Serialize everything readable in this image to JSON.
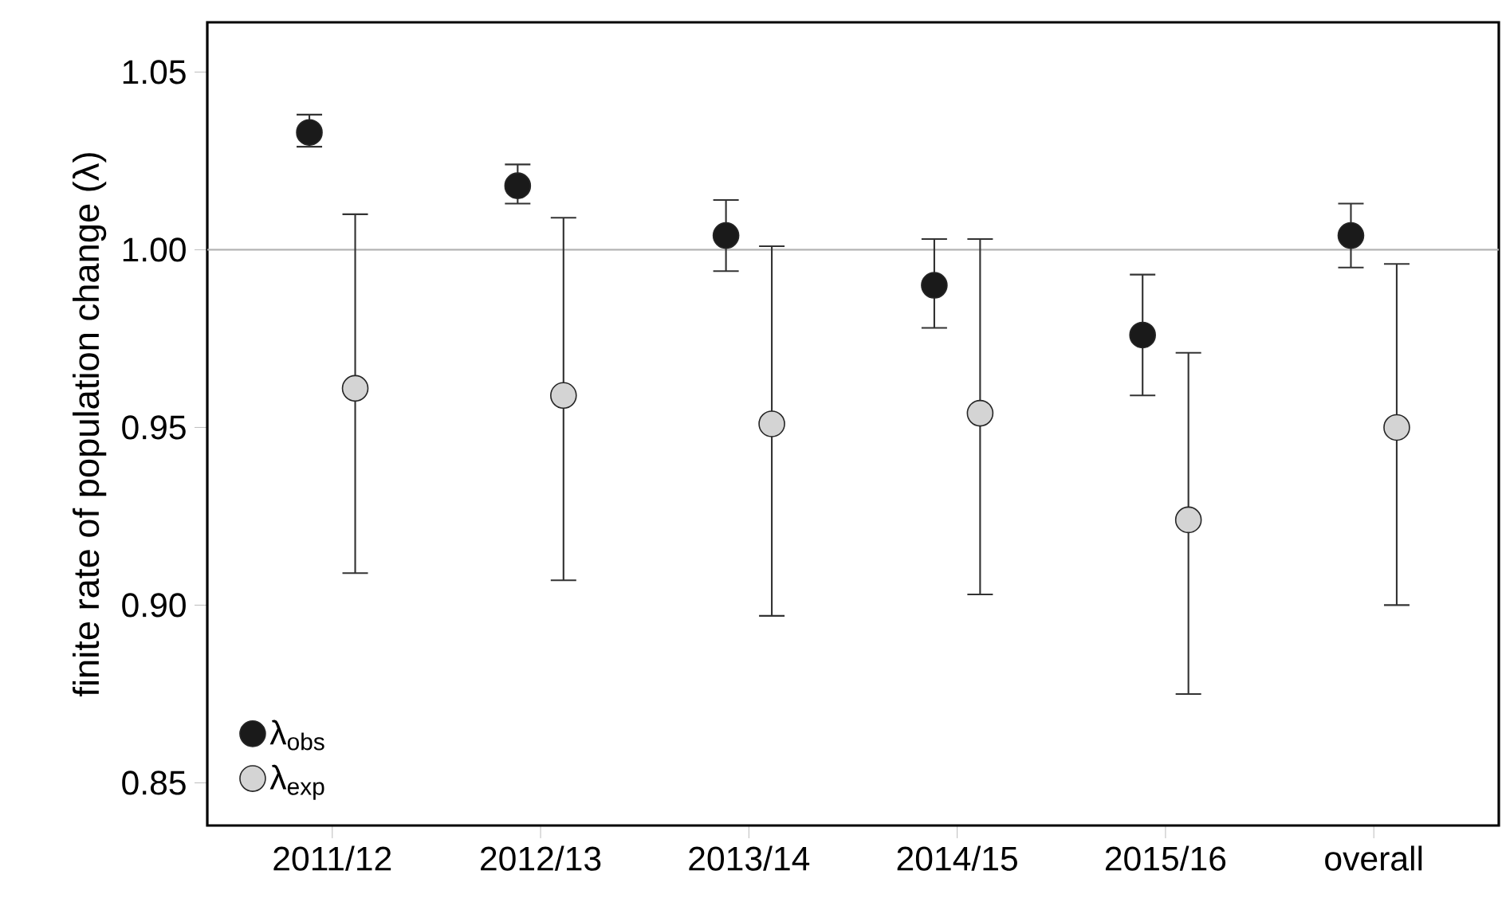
{
  "chart_data": {
    "type": "scatter",
    "ylabel": "finite rate of population change (λ)",
    "categories": [
      "2011/12",
      "2012/13",
      "2013/14",
      "2014/15",
      "2015/16",
      "overall"
    ],
    "ylim": [
      0.838,
      1.064
    ],
    "yticks": [
      0.85,
      {
        "value": 0.9,
        "label": "0.90"
      },
      0.95,
      {
        "value": 1.0,
        "label": "1.00"
      },
      1.05
    ],
    "marker": "circle",
    "legend": "bottom left",
    "grid": false,
    "ref_lines": [
      {
        "axis": "y",
        "value": 1.0,
        "color": "#b4b4b4"
      }
    ],
    "series": [
      {
        "name": "λ$_{obs}$",
        "color": "#1a1a1a",
        "values": [
          1.033,
          1.018,
          1.004,
          0.99,
          0.976,
          1.004
        ],
        "errors": [
          [
            1.029,
            1.038
          ],
          [
            1.013,
            1.024
          ],
          [
            0.994,
            1.014
          ],
          [
            0.978,
            1.003
          ],
          [
            0.959,
            0.993
          ],
          [
            0.995,
            1.013
          ]
        ]
      },
      {
        "name": "λ$_{exp}$",
        "color": "#d4d4d4",
        "values": [
          0.961,
          0.959,
          0.951,
          0.954,
          0.924,
          0.95
        ],
        "errors": [
          [
            0.909,
            1.01
          ],
          [
            0.907,
            1.009
          ],
          [
            0.897,
            1.001
          ],
          [
            0.903,
            1.003
          ],
          [
            0.875,
            0.971
          ],
          [
            0.9,
            0.996
          ]
        ]
      }
    ]
  }
}
